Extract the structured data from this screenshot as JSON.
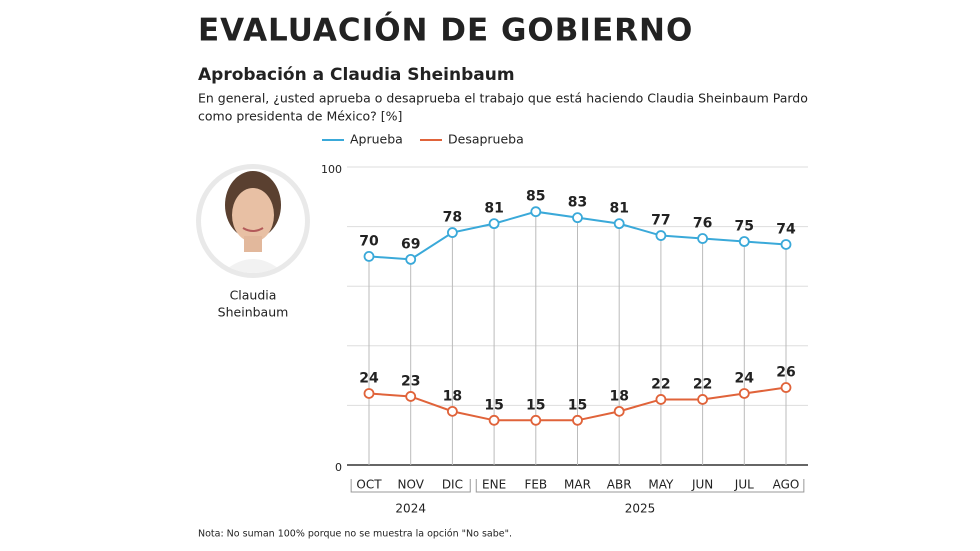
{
  "header": {
    "title": "EVALUACIÓN DE GOBIERNO",
    "subtitle": "Aprobación a Claudia Sheinbaum",
    "question": [
      "En general, ¿usted aprueba o desaprueba el trabajo que está haciendo Claudia Sheinbaum Pardo",
      "como presidenta de México?  [%]"
    ]
  },
  "person": {
    "name": [
      "Claudia",
      "Sheinbaum"
    ]
  },
  "chart_data": {
    "type": "line",
    "categories": [
      "OCT",
      "NOV",
      "DIC",
      "ENE",
      "FEB",
      "MAR",
      "ABR",
      "MAY",
      "JUN",
      "JUL",
      "AGO"
    ],
    "groups": [
      {
        "label": "2024",
        "span": 3
      },
      {
        "label": "2025",
        "span": 8
      }
    ],
    "series": [
      {
        "name": "Aprueba",
        "color": "#3aa9d9",
        "values": [
          70,
          69,
          78,
          81,
          85,
          83,
          81,
          77,
          76,
          75,
          74
        ]
      },
      {
        "name": "Desaprueba",
        "color": "#e0633a",
        "values": [
          24,
          23,
          18,
          15,
          15,
          15,
          18,
          22,
          22,
          24,
          26
        ]
      }
    ],
    "ylim": [
      0,
      100
    ],
    "yticks": [
      0,
      {
        "value": 20,
        "label": null
      },
      {
        "value": 40,
        "label": null
      },
      {
        "value": 60,
        "label": null
      },
      {
        "value": 80,
        "label": null
      },
      100
    ],
    "grid": true,
    "legend": "top"
  },
  "note": "Nota: No suman 100% porque no se muestra la opción \"No sabe\"."
}
